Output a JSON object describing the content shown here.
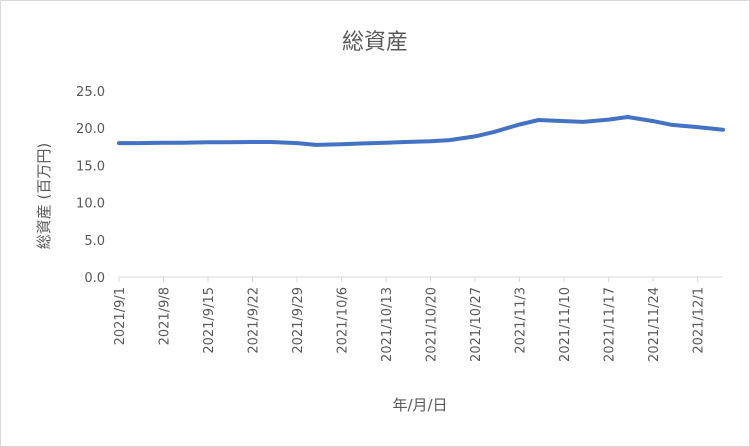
{
  "chart_data": {
    "type": "line",
    "title": "総資産",
    "xlabel": "年/月/日",
    "ylabel": "総資産 (百万円)",
    "ylim": [
      0,
      25
    ],
    "yticks": [
      0,
      5,
      10,
      15,
      20,
      25
    ],
    "ytick_labels": [
      "0.0",
      "5.0",
      "10.0",
      "15.0",
      "20.0",
      "25.0"
    ],
    "x_tick_labels": [
      "2021/9/1",
      "2021/9/8",
      "2021/9/15",
      "2021/9/22",
      "2021/9/29",
      "2021/10/6",
      "2021/10/13",
      "2021/10/20",
      "2021/10/27",
      "2021/11/3",
      "2021/11/10",
      "2021/11/17",
      "2021/11/24",
      "2021/12/1"
    ],
    "x_range": [
      "2021/9/1",
      "2021/12/5"
    ],
    "grid": false,
    "legend": "none",
    "line_color": "#4472c4",
    "series": [
      {
        "x": [
          "2021/9/1",
          "2021/9/4",
          "2021/9/8",
          "2021/9/11",
          "2021/9/15",
          "2021/9/18",
          "2021/9/22",
          "2021/9/25",
          "2021/9/29",
          "2021/10/2",
          "2021/10/6",
          "2021/10/9",
          "2021/10/13",
          "2021/10/16",
          "2021/10/20",
          "2021/10/23",
          "2021/10/27",
          "2021/10/30",
          "2021/11/3",
          "2021/11/6",
          "2021/11/10",
          "2021/11/13",
          "2021/11/17",
          "2021/11/20",
          "2021/11/24",
          "2021/11/27",
          "2021/12/1",
          "2021/12/5"
        ],
        "values": [
          18.0,
          18.0,
          18.05,
          18.05,
          18.1,
          18.1,
          18.15,
          18.15,
          18.0,
          17.75,
          17.85,
          17.95,
          18.05,
          18.15,
          18.25,
          18.4,
          18.9,
          19.5,
          20.5,
          21.1,
          20.95,
          20.85,
          21.15,
          21.5,
          20.95,
          20.45,
          20.15,
          19.8
        ]
      }
    ]
  }
}
